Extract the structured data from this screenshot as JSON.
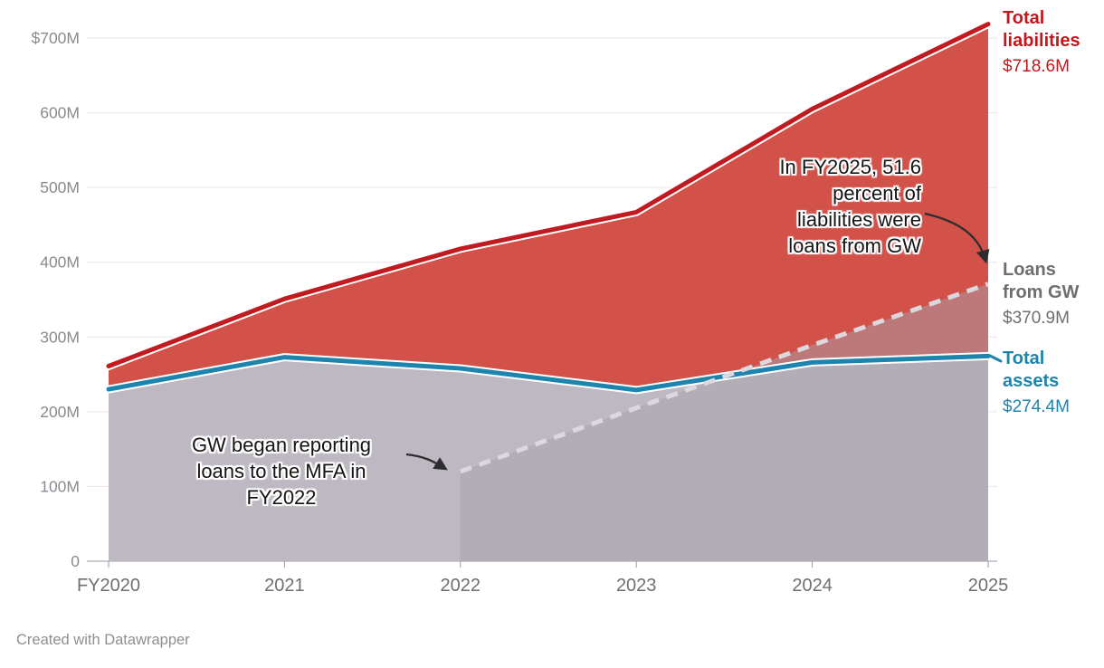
{
  "footer": {
    "credit": "Created with Datawrapper"
  },
  "chart_data": {
    "type": "area",
    "title": "",
    "x_labels": [
      "FY2020",
      "2021",
      "2022",
      "2023",
      "2024",
      "2025"
    ],
    "ylim": [
      0,
      700
    ],
    "grid": "horizontal",
    "y_ticks": [
      {
        "value": 700,
        "label": "$700M"
      },
      {
        "value": 600,
        "label": "600M"
      },
      {
        "value": 500,
        "label": "500M"
      },
      {
        "value": 400,
        "label": "400M"
      },
      {
        "value": 300,
        "label": "300M"
      },
      {
        "value": 200,
        "label": "200M"
      },
      {
        "value": 100,
        "label": "100M"
      },
      {
        "value": 0,
        "label": "0"
      }
    ],
    "series": [
      {
        "id": "total-liabilities",
        "name": "Total liabilities",
        "name_lines": [
          "Total",
          "liabilities"
        ],
        "value_label": "$718.6M",
        "style": "solid",
        "line_color": "#bf1b20",
        "fill_color": "#d25149",
        "label_color": "#c2181d",
        "values": [
          261,
          351,
          418,
          467,
          605,
          718.6
        ]
      },
      {
        "id": "loans-from-gw",
        "name": "Loans from GW",
        "name_lines": [
          "Loans",
          "from GW"
        ],
        "value_label": "$370.9M",
        "style": "dashed",
        "line_color": "#dcd8de",
        "fill_color": "rgba(168,162,172,0.5)",
        "label_color": "#6e6e6e",
        "values": [
          null,
          null,
          120,
          205,
          289,
          370.9
        ]
      },
      {
        "id": "total-assets",
        "name": "Total assets",
        "name_lines": [
          "Total",
          "assets"
        ],
        "value_label": "$274.4M",
        "style": "solid",
        "line_color": "#1d84ad",
        "fill_color": "#beb8c2",
        "label_color": "#1d84ad",
        "values": [
          230,
          273,
          258,
          229,
          266,
          274.4
        ]
      }
    ],
    "annotations": [
      {
        "id": "fy2025-share",
        "text": "In FY2025, 51.6 percent of liabilities were loans from GW",
        "lines": [
          "In FY2025, 51.6",
          "percent of",
          "liabilities were",
          "loans from GW"
        ]
      },
      {
        "id": "fy2022-start",
        "text": "GW began reporting loans to the MFA in FY2022",
        "lines": [
          "GW began reporting",
          "loans to the MFA in",
          "FY2022"
        ]
      }
    ]
  }
}
